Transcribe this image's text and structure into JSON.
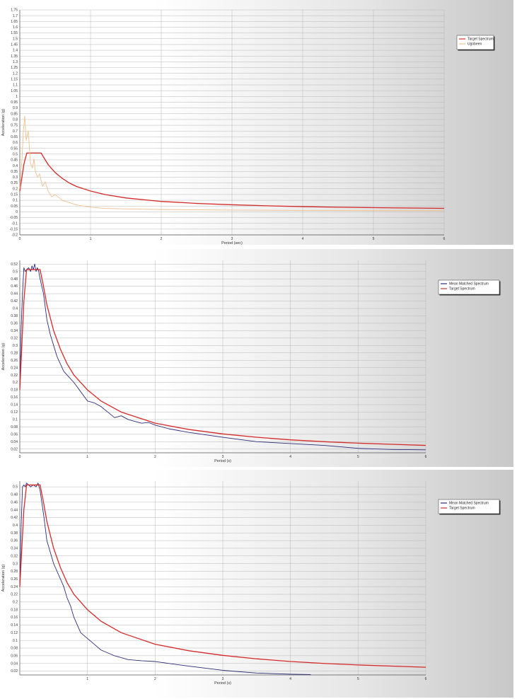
{
  "chart_data": [
    {
      "type": "line",
      "xlabel": "Period (sec)",
      "ylabel": "Acceleration (g)",
      "xlim": [
        0,
        6
      ],
      "ylim": [
        -0.2,
        1.75
      ],
      "xticks": [
        "0",
        "1",
        "2",
        "3",
        "4",
        "5",
        "6"
      ],
      "yticks": [
        "1.75",
        "1.7",
        "1.65",
        "1.6",
        "1.55",
        "1.5",
        "1.45",
        "1.4",
        "1.35",
        "1.3",
        "1.25",
        "1.2",
        "1.15",
        "1.1",
        "1.05",
        "1",
        "0.95",
        "0.9",
        "0.85",
        "0.8",
        "0.75",
        "0.7",
        "0.65",
        "0.6",
        "0.55",
        "0.5",
        "0.45",
        "0.4",
        "0.35",
        "0.3",
        "0.25",
        "0.2",
        "0.15",
        "0.1",
        "0.05",
        "0",
        "-0.05",
        "-0.1",
        "-0.15",
        "-0.2"
      ],
      "grid": true,
      "legend": "top-right",
      "series": [
        {
          "name": "Target Spectrum",
          "color": "#d42a2a",
          "x": [
            0,
            0.06,
            0.1,
            0.2,
            0.3,
            0.35,
            0.4,
            0.5,
            0.6,
            0.7,
            0.8,
            1.0,
            1.2,
            1.5,
            2.0,
            2.5,
            3.0,
            3.5,
            4.0,
            4.5,
            5.0,
            5.5,
            6.0
          ],
          "y": [
            0.18,
            0.42,
            0.51,
            0.51,
            0.51,
            0.46,
            0.41,
            0.34,
            0.29,
            0.25,
            0.22,
            0.18,
            0.15,
            0.12,
            0.09,
            0.073,
            0.061,
            0.052,
            0.045,
            0.04,
            0.036,
            0.033,
            0.03
          ]
        },
        {
          "name": "Ugobeen",
          "color": "#f0c090",
          "x": [
            0,
            0.03,
            0.05,
            0.07,
            0.09,
            0.12,
            0.15,
            0.18,
            0.2,
            0.22,
            0.25,
            0.28,
            0.32,
            0.36,
            0.4,
            0.45,
            0.5,
            0.6,
            0.7,
            0.8,
            0.9,
            1.0,
            1.2,
            1.5,
            2.0,
            3.0,
            4.0,
            5.0,
            6.0
          ],
          "y": [
            0.2,
            0.45,
            0.7,
            0.83,
            0.62,
            0.7,
            0.42,
            0.38,
            0.46,
            0.35,
            0.3,
            0.33,
            0.22,
            0.26,
            0.18,
            0.13,
            0.15,
            0.1,
            0.08,
            0.06,
            0.05,
            0.04,
            0.03,
            0.025,
            0.02,
            0.015,
            0.012,
            0.01,
            0.01
          ]
        }
      ]
    },
    {
      "type": "line",
      "xlabel": "Period (s)",
      "ylabel": "Acceleration (g)",
      "xlim": [
        0,
        6
      ],
      "ylim": [
        0.01,
        0.53
      ],
      "xticks": [
        "0",
        "1",
        "2",
        "3",
        "4",
        "5",
        "6"
      ],
      "yticks": [
        "0.52",
        "0.5",
        "0.48",
        "0.46",
        "0.44",
        "0.42",
        "0.4",
        "0.38",
        "0.36",
        "0.34",
        "0.32",
        "0.3",
        "0.28",
        "0.26",
        "0.24",
        "0.22",
        "0.2",
        "0.18",
        "0.16",
        "0.14",
        "0.12",
        "0.1",
        "0.08",
        "0.06",
        "0.04",
        "0.02"
      ],
      "grid": true,
      "legend": "top-right",
      "series": [
        {
          "name": "Mean Matched Spectrum",
          "color": "#2c2c7a",
          "x": [
            0,
            0.02,
            0.04,
            0.06,
            0.08,
            0.1,
            0.13,
            0.16,
            0.18,
            0.2,
            0.22,
            0.24,
            0.26,
            0.28,
            0.3,
            0.35,
            0.4,
            0.45,
            0.5,
            0.55,
            0.6,
            0.65,
            0.7,
            0.8,
            0.9,
            1.0,
            1.1,
            1.2,
            1.3,
            1.4,
            1.5,
            1.6,
            1.8,
            1.9,
            2.0,
            2.2,
            2.5,
            3.0,
            3.5,
            4.0,
            4.5,
            5.0,
            5.5,
            6.0
          ],
          "y": [
            0.18,
            0.35,
            0.44,
            0.51,
            0.5,
            0.505,
            0.51,
            0.5,
            0.515,
            0.505,
            0.52,
            0.5,
            0.51,
            0.5,
            0.48,
            0.44,
            0.37,
            0.33,
            0.3,
            0.27,
            0.25,
            0.23,
            0.22,
            0.2,
            0.175,
            0.15,
            0.145,
            0.135,
            0.12,
            0.105,
            0.11,
            0.1,
            0.09,
            0.092,
            0.085,
            0.075,
            0.065,
            0.052,
            0.04,
            0.035,
            0.03,
            0.022,
            0.019,
            0.018
          ]
        },
        {
          "name": "Target Spectrum",
          "color": "#d42a2a",
          "x": [
            0,
            0.06,
            0.1,
            0.2,
            0.3,
            0.35,
            0.4,
            0.5,
            0.6,
            0.7,
            0.8,
            1.0,
            1.2,
            1.5,
            2.0,
            2.5,
            3.0,
            3.5,
            4.0,
            4.5,
            5.0,
            5.5,
            6.0
          ],
          "y": [
            0.18,
            0.42,
            0.505,
            0.505,
            0.505,
            0.46,
            0.41,
            0.34,
            0.29,
            0.25,
            0.22,
            0.18,
            0.15,
            0.12,
            0.09,
            0.073,
            0.061,
            0.052,
            0.045,
            0.04,
            0.036,
            0.033,
            0.03
          ]
        }
      ]
    },
    {
      "type": "line",
      "xlabel": "Period (s)",
      "ylabel": "Acceleration (g)",
      "xlim": [
        0,
        6
      ],
      "ylim": [
        0.01,
        0.515
      ],
      "xticks": [
        "1",
        "2",
        "3",
        "4",
        "5",
        "6"
      ],
      "yticks": [
        "0.5",
        "0.48",
        "0.46",
        "0.44",
        "0.42",
        "0.4",
        "0.38",
        "0.36",
        "0.34",
        "0.32",
        "0.3",
        "0.28",
        "0.26",
        "0.24",
        "0.22",
        "0.2",
        "0.18",
        "0.16",
        "0.14",
        "0.12",
        "0.1",
        "0.08",
        "0.06",
        "0.04",
        "0.02"
      ],
      "grid": true,
      "legend": "top-right",
      "series": [
        {
          "name": "Mean Matched Spectrum",
          "color": "#2c2c7a",
          "x": [
            0,
            0.02,
            0.04,
            0.06,
            0.08,
            0.1,
            0.13,
            0.16,
            0.2,
            0.24,
            0.27,
            0.3,
            0.35,
            0.4,
            0.45,
            0.5,
            0.55,
            0.6,
            0.65,
            0.7,
            0.75,
            0.8,
            0.85,
            0.9,
            1.0,
            1.1,
            1.2,
            1.4,
            1.6,
            1.8,
            2.0,
            2.2,
            2.5,
            3.0,
            3.5,
            4.0,
            4.3
          ],
          "y": [
            0.24,
            0.4,
            0.5,
            0.505,
            0.5,
            0.51,
            0.505,
            0.5,
            0.505,
            0.5,
            0.51,
            0.49,
            0.43,
            0.36,
            0.33,
            0.3,
            0.28,
            0.26,
            0.24,
            0.21,
            0.19,
            0.16,
            0.14,
            0.12,
            0.105,
            0.09,
            0.075,
            0.06,
            0.05,
            0.047,
            0.045,
            0.04,
            0.033,
            0.022,
            0.015,
            0.012,
            0.011
          ]
        },
        {
          "name": "Target Spectrum",
          "color": "#d42a2a",
          "x": [
            0,
            0.06,
            0.1,
            0.2,
            0.3,
            0.35,
            0.4,
            0.5,
            0.6,
            0.7,
            0.8,
            1.0,
            1.2,
            1.5,
            2.0,
            2.5,
            3.0,
            3.5,
            4.0,
            4.5,
            5.0,
            5.5,
            6.0
          ],
          "y": [
            0.24,
            0.44,
            0.505,
            0.505,
            0.505,
            0.46,
            0.41,
            0.34,
            0.29,
            0.25,
            0.22,
            0.18,
            0.15,
            0.12,
            0.09,
            0.073,
            0.061,
            0.052,
            0.045,
            0.04,
            0.036,
            0.033,
            0.03
          ]
        }
      ]
    }
  ]
}
